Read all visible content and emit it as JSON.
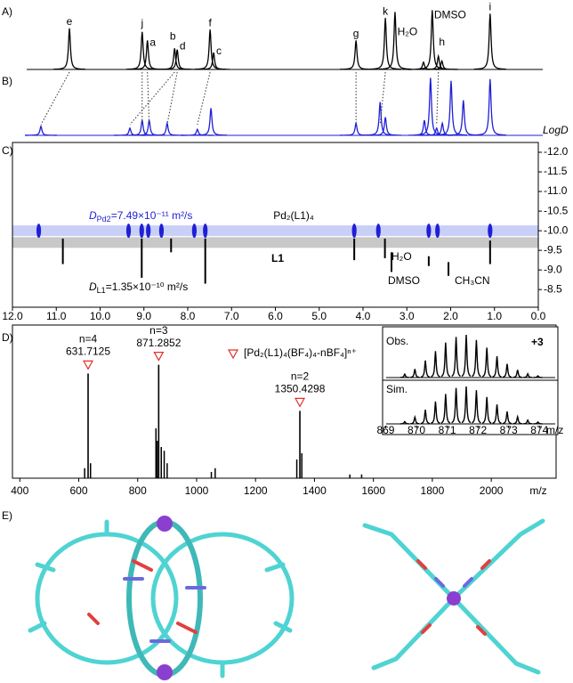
{
  "panel_labels": [
    "A)",
    "B)",
    "C)",
    "D)",
    "E)"
  ],
  "chart_data": [
    {
      "type": "spectrum",
      "color": "#000000",
      "xlim": [
        12,
        0
      ],
      "x": [
        10.7,
        9.04,
        8.92,
        8.3,
        8.24,
        7.49,
        7.41,
        4.16,
        3.49,
        3.27,
        2.62,
        2.42,
        2.28,
        2.2,
        1.1
      ],
      "values": [
        68,
        62,
        48,
        35,
        33,
        66,
        28,
        48,
        85,
        95,
        12,
        98,
        22,
        14,
        92
      ],
      "peak_labels": [
        "e",
        "j",
        "a",
        "b",
        "d",
        "f",
        "c",
        "g",
        "k",
        "H₂O",
        null,
        "DMSO",
        "h",
        null,
        "i"
      ]
    },
    {
      "type": "spectrum",
      "color": "#1f1fd6",
      "xlim": [
        12,
        0
      ],
      "x": [
        11.35,
        9.32,
        9.04,
        8.88,
        8.47,
        7.78,
        7.47,
        4.16,
        3.61,
        3.49,
        2.6,
        2.46,
        2.32,
        2.19,
        1.99,
        1.71,
        1.1
      ],
      "values": [
        15,
        12,
        25,
        25,
        20,
        10,
        45,
        20,
        55,
        30,
        25,
        95,
        12,
        20,
        90,
        58,
        93
      ],
      "links": [
        [
          10.7,
          11.35
        ],
        [
          9.04,
          9.04
        ],
        [
          8.92,
          8.88
        ],
        [
          8.3,
          9.32
        ],
        [
          8.24,
          8.47
        ],
        [
          7.49,
          7.78
        ],
        [
          4.16,
          4.16
        ],
        [
          3.49,
          3.61
        ],
        [
          2.28,
          2.32
        ]
      ]
    },
    {
      "type": "dosy",
      "xlim": [
        12,
        0
      ],
      "xticks": [
        {
          "value": 12,
          "label": "12.0"
        },
        {
          "value": 11,
          "label": "11.0"
        },
        {
          "value": 10,
          "label": "10.0"
        },
        {
          "value": 9,
          "label": "9.0"
        },
        {
          "value": 8,
          "label": "8.0"
        },
        {
          "value": 7,
          "label": "7.0"
        },
        {
          "value": 6,
          "label": "6.0"
        },
        {
          "value": 5,
          "label": "5.0"
        },
        {
          "value": 4,
          "label": "4.0"
        },
        {
          "value": 3,
          "label": "3.0"
        },
        {
          "value": 2,
          "label": "2.0"
        },
        {
          "value": 1,
          "label": "1.0"
        },
        {
          "value": 0,
          "label": "0.0"
        }
      ],
      "ylim": [
        -12.25,
        -8.05
      ],
      "yticks": [
        {
          "value": -12,
          "label": "-12.0"
        },
        -11.5,
        {
          "value": -11,
          "label": "-11.0"
        },
        -10.5,
        {
          "value": -10,
          "label": "-10.0"
        },
        -9.5,
        {
          "value": -9,
          "label": "-9.0"
        },
        -8.5
      ],
      "ylabel": "LogD",
      "series": [
        {
          "name": "Pd₂(L1)₄",
          "color": "#1f1fd6",
          "band": -10,
          "band_color": "#c9d0f7",
          "diffusion": {
            "symbol": "D",
            "subscript": "Pd2",
            "text": "=7.49×10⁻¹¹ m²/s"
          },
          "x": [
            11.4,
            9.35,
            9.05,
            8.9,
            8.6,
            7.85,
            7.6,
            4.2,
            3.65,
            2.5,
            2.3,
            1.1
          ],
          "values": [
            -10,
            -10,
            -10,
            -10,
            -10,
            -10,
            -10,
            -10,
            -10,
            -10,
            -10,
            -10
          ]
        },
        {
          "name": "L1",
          "color": "#000000",
          "band": -9.7,
          "band_color": "#c8c8c8",
          "diffusion": {
            "symbol": "D",
            "subscript": "L1",
            "text": "=1.35×10⁻¹⁰ m²/s"
          },
          "x": [
            10.85,
            9.05,
            8.38,
            7.6,
            4.2,
            3.5,
            1.1
          ],
          "low": [
            -9.8,
            -9.8,
            -9.8,
            -9.8,
            -9.8,
            -9.8,
            -9.75
          ],
          "high": [
            -9.15,
            -8.8,
            -9.45,
            -8.65,
            -9.25,
            -9.3,
            -9.15
          ]
        }
      ],
      "solvent_signals": {
        "labels": [
          "H₂O",
          "DMSO",
          "CH₃CN"
        ],
        "x": [
          3.35,
          2.5,
          2.05
        ],
        "low": [
          -9.45,
          -9.35,
          -9.2
        ],
        "high": [
          -8.95,
          -9.1,
          -8.85
        ]
      }
    },
    {
      "type": "ms",
      "color": "#000000",
      "xlim": [
        375,
        2220
      ],
      "xticks": [
        400,
        600,
        800,
        1000,
        1200,
        1400,
        1600,
        1800,
        2000
      ],
      "xlabel": "m/z",
      "x": [
        620,
        640,
        862,
        866,
        880,
        890,
        900,
        1050,
        1063,
        1340,
        1357,
        1520,
        1560
      ],
      "values": [
        8,
        12,
        40,
        30,
        25,
        22,
        12,
        5,
        8,
        15,
        20,
        3,
        3
      ],
      "labeled": [
        {
          "label": "n=4",
          "mz": 631.7125,
          "value": 84
        },
        {
          "label": "n=3",
          "mz": 871.2852,
          "value": 91
        },
        {
          "label": "n=2",
          "mz": 1350.4298,
          "value": 54
        }
      ],
      "marker_color": "#e0302a",
      "legend": "[Pd₂(L1)₄(BF₄)₄-nBF₄]ⁿ⁺"
    },
    {
      "type": "ms-inset",
      "xlim": [
        868.9,
        874.6
      ],
      "xticks": [
        869,
        870,
        871,
        872,
        873,
        874
      ],
      "xlabel": "m/z",
      "charge": "+3",
      "x": [
        869.62,
        869.95,
        870.29,
        870.62,
        870.95,
        871.29,
        871.62,
        871.95,
        872.29,
        872.62,
        872.95,
        873.29,
        873.62,
        873.95
      ],
      "series": [
        {
          "name": "Obs.",
          "color": "#000000",
          "values": [
            8,
            20,
            40,
            62,
            82,
            95,
            100,
            88,
            70,
            50,
            32,
            18,
            9,
            4
          ]
        },
        {
          "name": "Sim.",
          "color": "#000000",
          "values": [
            6,
            18,
            38,
            60,
            80,
            96,
            100,
            90,
            72,
            52,
            33,
            19,
            10,
            5
          ]
        }
      ]
    }
  ]
}
